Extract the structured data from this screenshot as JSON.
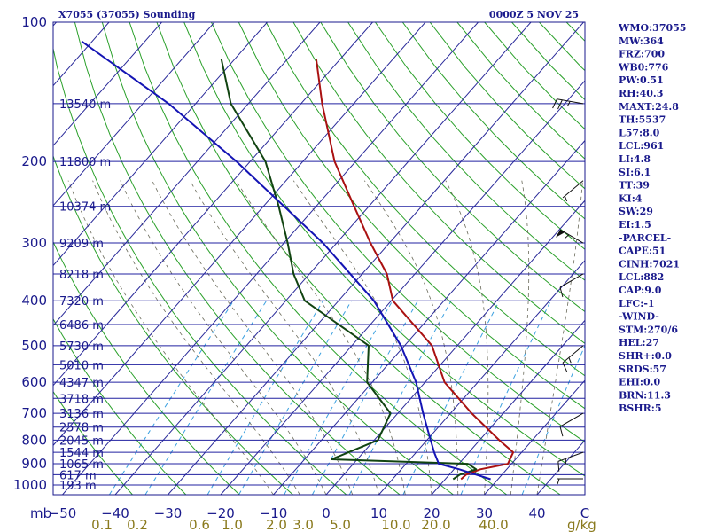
{
  "chart_data": {
    "type": "skew-t sounding",
    "title_left": "X7055 (37055) Sounding",
    "title_right": "0000Z  5 NOV 25",
    "pressure_unit_label": "mb",
    "mixing_ratio_unit_label": "g/kg",
    "temperature_unit_label": "C",
    "pressure_levels": [
      100,
      200,
      300,
      400,
      500,
      600,
      700,
      800,
      900,
      1000
    ],
    "temperature_ticks": [
      -50,
      -40,
      -30,
      -20,
      -10,
      0,
      10,
      20,
      30,
      40
    ],
    "mixing_ratio_ticks": [
      "0.1",
      "0.2",
      "0.6",
      "1.0",
      "2.0",
      "3.0",
      "5.0",
      "10.0",
      "20.0",
      "40.0"
    ],
    "height_labels": [
      {
        "p": 150,
        "label": "13540 m"
      },
      {
        "p": 200,
        "label": "11800 m"
      },
      {
        "p": 250,
        "label": "10374 m"
      },
      {
        "p": 300,
        "label": "9209 m"
      },
      {
        "p": 350,
        "label": "8218 m"
      },
      {
        "p": 400,
        "label": "7320 m"
      },
      {
        "p": 450,
        "label": "6486 m"
      },
      {
        "p": 500,
        "label": "5730 m"
      },
      {
        "p": 550,
        "label": "5010 m"
      },
      {
        "p": 600,
        "label": "4347 m"
      },
      {
        "p": 650,
        "label": "3718 m"
      },
      {
        "p": 700,
        "label": "3136 m"
      },
      {
        "p": 750,
        "label": "2578 m"
      },
      {
        "p": 800,
        "label": "2045 m"
      },
      {
        "p": 850,
        "label": "1544 m"
      },
      {
        "p": 900,
        "label": "1065 m"
      },
      {
        "p": 950,
        "label": "617 m"
      },
      {
        "p": 1000,
        "label": "193 m"
      }
    ],
    "series": [
      {
        "name": "temperature",
        "color": "#aa1111",
        "points": [
          {
            "p": 972,
            "t": 23.0
          },
          {
            "p": 950,
            "t": 23.2
          },
          {
            "p": 925,
            "t": 25.0
          },
          {
            "p": 900,
            "t": 29.3
          },
          {
            "p": 850,
            "t": 28.4
          },
          {
            "p": 800,
            "t": 23.7
          },
          {
            "p": 700,
            "t": 14.0
          },
          {
            "p": 600,
            "t": 3.7
          },
          {
            "p": 500,
            "t": -4.8
          },
          {
            "p": 400,
            "t": -19.7
          },
          {
            "p": 350,
            "t": -25.3
          },
          {
            "p": 300,
            "t": -33.6
          },
          {
            "p": 250,
            "t": -42.8
          },
          {
            "p": 200,
            "t": -54.0
          },
          {
            "p": 150,
            "t": -66.0
          },
          {
            "p": 120,
            "t": -74.6
          }
        ]
      },
      {
        "name": "dewpoint",
        "color": "#114411",
        "points": [
          {
            "p": 972,
            "t": 21.5
          },
          {
            "p": 950,
            "t": 22.0
          },
          {
            "p": 925,
            "t": 24.2
          },
          {
            "p": 900,
            "t": 21.7
          },
          {
            "p": 880,
            "t": -4.9
          },
          {
            "p": 800,
            "t": 0.7
          },
          {
            "p": 700,
            "t": -1.4
          },
          {
            "p": 600,
            "t": -11.0
          },
          {
            "p": 500,
            "t": -16.8
          },
          {
            "p": 400,
            "t": -36.4
          },
          {
            "p": 350,
            "t": -43.0
          },
          {
            "p": 300,
            "t": -49.3
          },
          {
            "p": 250,
            "t": -57.1
          },
          {
            "p": 200,
            "t": -67.1
          },
          {
            "p": 150,
            "t": -83.3
          },
          {
            "p": 120,
            "t": -92.6
          }
        ]
      },
      {
        "name": "parcel",
        "color": "#1414b4",
        "points": [
          {
            "p": 972,
            "t": 28.6
          },
          {
            "p": 925,
            "t": 21.0
          },
          {
            "p": 900,
            "t": 16.2
          },
          {
            "p": 850,
            "t": 13.4
          },
          {
            "p": 800,
            "t": 10.7
          },
          {
            "p": 700,
            "t": 4.8
          },
          {
            "p": 600,
            "t": -1.7
          },
          {
            "p": 500,
            "t": -10.7
          },
          {
            "p": 400,
            "t": -23.3
          },
          {
            "p": 300,
            "t": -42.6
          },
          {
            "p": 200,
            "t": -72.6
          },
          {
            "p": 150,
            "t": -95.1
          },
          {
            "p": 110,
            "t": -122.0
          }
        ]
      }
    ],
    "wind_barbs": [
      {
        "p": 970,
        "direction": 270,
        "speed_kt": 5
      },
      {
        "p": 850,
        "direction": 250,
        "speed_kt": 15
      },
      {
        "p": 700,
        "direction": 240,
        "speed_kt": 10
      },
      {
        "p": 500,
        "direction": 230,
        "speed_kt": 15
      },
      {
        "p": 350,
        "direction": 240,
        "speed_kt": 10
      },
      {
        "p": 300,
        "direction": 300,
        "speed_kt": 55
      },
      {
        "p": 220,
        "direction": 230,
        "speed_kt": 5
      },
      {
        "p": 150,
        "direction": 280,
        "speed_kt": 25
      }
    ]
  },
  "stats": [
    "WMO:37055",
    "MW:364",
    "FRZ:700",
    "WB0:776",
    "PW:0.51",
    "RH:40.3",
    "MAXT:24.8",
    "TH:5537",
    "L57:8.0",
    "LCL:961",
    "LI:4.8",
    "SI:6.1",
    "TT:39",
    "KI:4",
    "SW:29",
    "EI:1.5",
    "-PARCEL-",
    "CAPE:51",
    "CINH:7021",
    "LCL:882",
    "CAP:9.0",
    "LFC:-1",
    "-WIND-",
    "STM:270/6",
    "HEL:27",
    "SHR+:0.0",
    "SRDS:57",
    "EHI:0.0",
    "BRN:11.3",
    "BSHR:5"
  ],
  "colors": {
    "frame": "#1a1a8c",
    "isobar": "#2020a0",
    "isotherm": "#2a2a9a",
    "dry_adiabat": "#2aa02a",
    "moist_adiabat": "#6a6a5a",
    "mixing_ratio": "#3aa0e0",
    "mix_label": "#8a7a1e"
  }
}
